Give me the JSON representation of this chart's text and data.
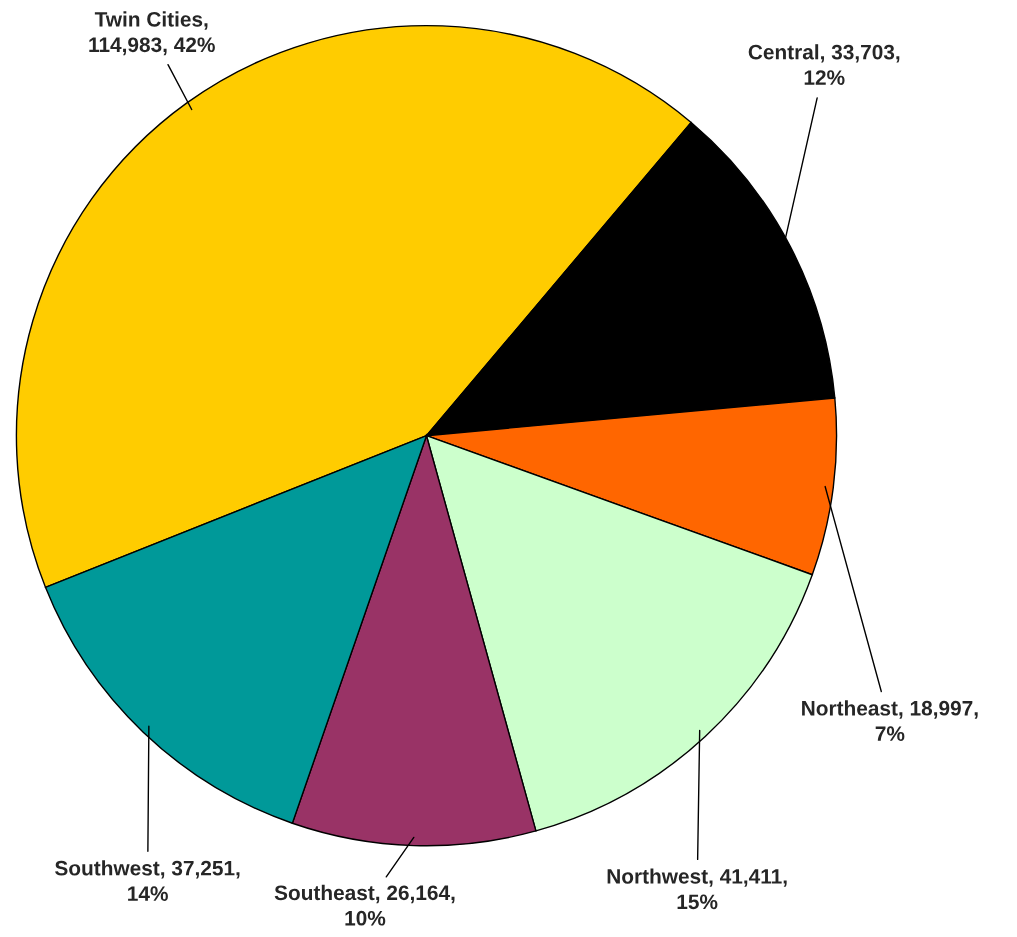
{
  "chart_data": {
    "type": "pie",
    "categories": [
      "Twin Cities",
      "Central",
      "Northeast",
      "Northwest",
      "Southeast",
      "Southwest"
    ],
    "values": [
      114983,
      33703,
      18997,
      41411,
      26164,
      37251
    ],
    "value_labels": [
      ",\n114,983, 42%",
      ", 33,703,\n12%",
      ", 18,997,\n7%",
      ", 41,411,\n15%",
      ", 26,164,\n10%",
      ", 37,251,\n14%"
    ],
    "colors": [
      "#ffcc00",
      "#000000",
      "#ff6600",
      "#ccffcc",
      "#993366",
      "#009999"
    ]
  }
}
